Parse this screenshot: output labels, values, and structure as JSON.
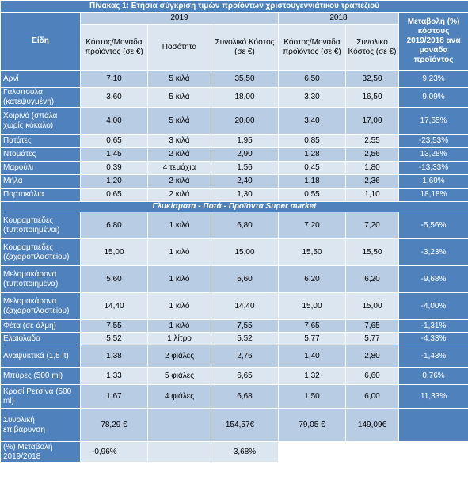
{
  "title": "Πίνακας 1: Ετήσια σύγκριση τιμών προϊόντων χριστουγεννιάτικου τραπεζιού",
  "headers": {
    "year_2019": "2019",
    "year_2018": "2018",
    "item": "Είδη",
    "unit_cost_2019": "Κόστος/Μονάδα προϊόντος (σε €)",
    "quantity": "Ποσότητα",
    "total_cost_2019": "Συνολικό Κόστος (σε €)",
    "unit_cost_2018": "Κόστος/Μονάδα προϊόντος (σε €)",
    "total_cost_2018": "Συνολικό Κόστος (σε €)",
    "change": "Μεταβολή (%) κόστους 2019/2018 ανά μονάδα προϊόντος"
  },
  "section1_rows": [
    {
      "item": "Αρνί",
      "unit2019": "7,10",
      "qty": "5 κιλά",
      "total2019": "35,50",
      "unit2018": "6,50",
      "total2018": "32,50",
      "change": "9,23%"
    },
    {
      "item": "Γαλοπούλα (κατεψυγμένη)",
      "unit2019": "3,60",
      "qty": "5 κιλά",
      "total2019": "18,00",
      "unit2018": "3,30",
      "total2018": "16,50",
      "change": "9,09%"
    },
    {
      "item": "Χοιρινό (σπάλα χωρίς κόκαλο)",
      "unit2019": "4,00",
      "qty": "5 κιλά",
      "total2019": "20,00",
      "unit2018": "3,40",
      "total2018": "17,00",
      "change": "17,65%"
    },
    {
      "item": "Πατάτες",
      "unit2019": "0,65",
      "qty": "3 κιλά",
      "total2019": "1,95",
      "unit2018": "0,85",
      "total2018": "2,55",
      "change": "-23,53%"
    },
    {
      "item": "Ντομάτες",
      "unit2019": "1,45",
      "qty": "2 κιλά",
      "total2019": "2,90",
      "unit2018": "1,28",
      "total2018": "2,56",
      "change": "13,28%"
    },
    {
      "item": "Μαρούλι",
      "unit2019": "0,39",
      "qty": "4 τεμάχια",
      "total2019": "1,56",
      "unit2018": "0,45",
      "total2018": "1,80",
      "change": "-13,33%"
    },
    {
      "item": "Μήλα",
      "unit2019": "1,20",
      "qty": "2 κιλά",
      "total2019": "2,40",
      "unit2018": "1,18",
      "total2018": "2,36",
      "change": "1,69%"
    },
    {
      "item": "Πορτοκάλια",
      "unit2019": "0,65",
      "qty": "2 κιλά",
      "total2019": "1,30",
      "unit2018": "0,55",
      "total2018": "1,10",
      "change": "18,18%"
    }
  ],
  "section2_title": "Γλυκίσματα - Ποτά - Προϊόντα Super market",
  "section2_rows": [
    {
      "item": "Κουραμπιέδες (τυποποιημένοι)",
      "unit2019": "6,80",
      "qty": "1 κιλό",
      "total2019": "6,80",
      "unit2018": "7,20",
      "total2018": "7,20",
      "change": "-5,56%"
    },
    {
      "item": "Κουραμπιέδες (ζαχαροπλαστείου)",
      "unit2019": "15,00",
      "qty": "1 κιλό",
      "total2019": "15,00",
      "unit2018": "15,50",
      "total2018": "15,50",
      "change": "-3,23%"
    },
    {
      "item": "Μελομακάρονα (τυποποιημένα)",
      "unit2019": "5,60",
      "qty": "1 κιλό",
      "total2019": "5,60",
      "unit2018": "6,20",
      "total2018": "6,20",
      "change": "-9,68%"
    },
    {
      "item": "Μελομακάρονα (ζαχαροπλαστείου)",
      "unit2019": "14,40",
      "qty": "1 κιλό",
      "total2019": "14,40",
      "unit2018": "15,00",
      "total2018": "15,00",
      "change": "-4,00%"
    },
    {
      "item": "Φέτα (σε άλμη)",
      "unit2019": "7,55",
      "qty": "1 κιλό",
      "total2019": "7,55",
      "unit2018": "7,65",
      "total2018": "7,65",
      "change": "-1,31%"
    },
    {
      "item": "Ελαιόλαδο",
      "unit2019": "5,52",
      "qty": "1 λίτρο",
      "total2019": "5,52",
      "unit2018": "5,77",
      "total2018": "5,77",
      "change": "-4,33%"
    },
    {
      "item": "Αναψυκτικά (1,5 lt)",
      "unit2019": "1,38",
      "qty": "2 φιάλες",
      "total2019": "2,76",
      "unit2018": "1,40",
      "total2018": "2,80",
      "change": "-1,43%"
    },
    {
      "item": "Μπύρες (500 ml)",
      "unit2019": "1,33",
      "qty": "5 φιάλες",
      "total2019": "6,65",
      "unit2018": "1,32",
      "total2018": "6,60",
      "change": "0,76%"
    },
    {
      "item": "Κρασί Ρετσίνα (500 ml)",
      "unit2019": "1,67",
      "qty": "4 φιάλες",
      "total2019": "6,68",
      "unit2018": "1,50",
      "total2018": "6,00",
      "change": "11,33%"
    }
  ],
  "totals": {
    "label": "Συνολική επιβάρυνση",
    "unit2019": "78,29 €",
    "total2019": "154,57€",
    "unit2018": "79,05 €",
    "total2018": "149,09€"
  },
  "change_row": {
    "label": "(%) Μεταβολή 2019/2018",
    "unit_change": "-0,96%",
    "total_change": "3,68%"
  }
}
